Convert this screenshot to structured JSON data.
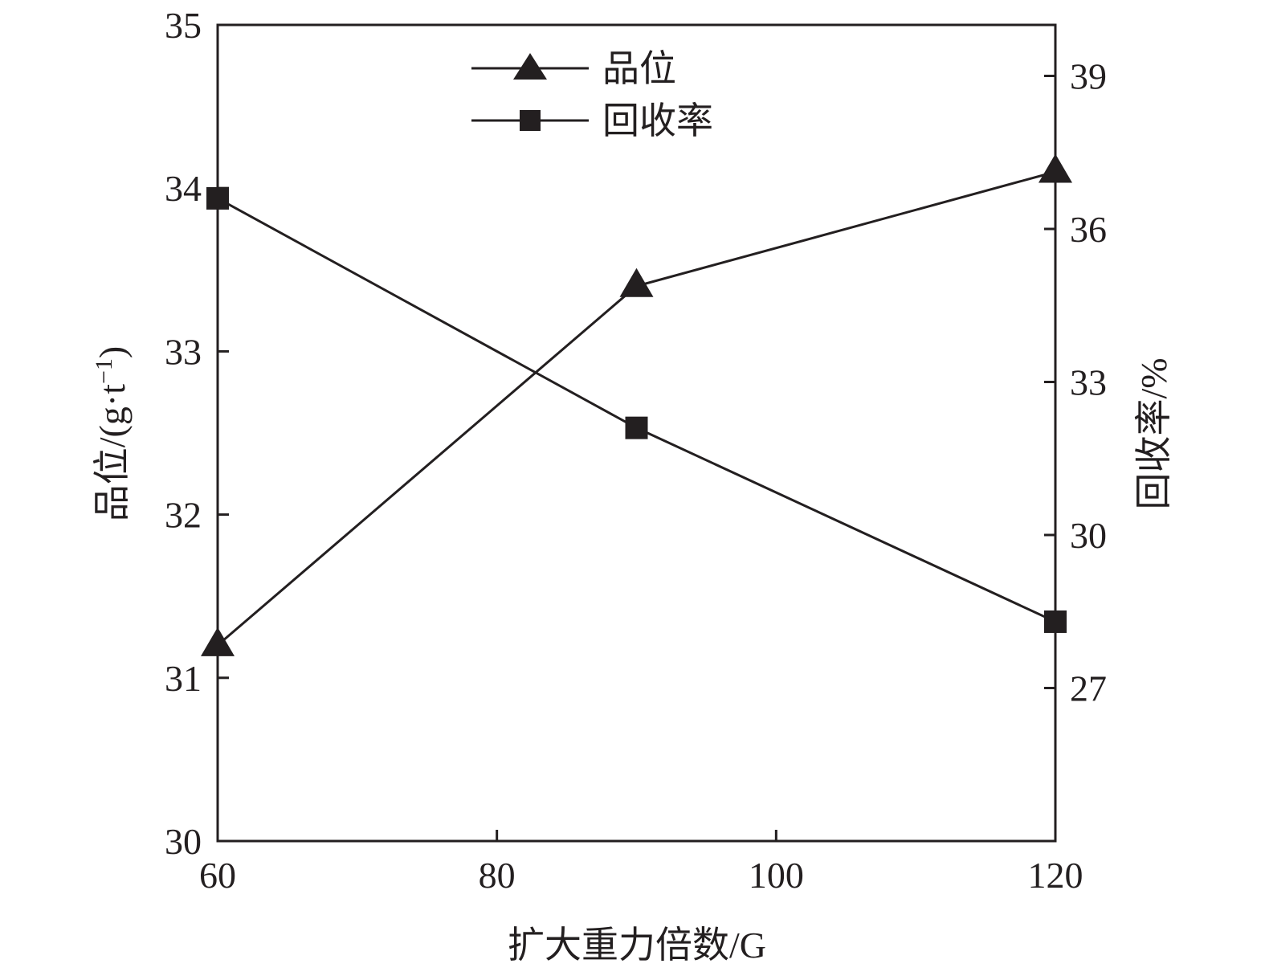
{
  "chart_data": {
    "type": "line",
    "x": [
      60,
      90,
      120
    ],
    "xlabel": "扩大重力倍数/G",
    "xlim": [
      60,
      120
    ],
    "xticks": [
      60,
      80,
      100,
      120
    ],
    "ylabel_left": "品位/(g·t",
    "ylabel_left_exp": "−1",
    "ylabel_left_close": ")",
    "ylim_left": [
      30,
      35
    ],
    "yticks_left": [
      30,
      31,
      32,
      33,
      34,
      35
    ],
    "ylabel_right": "回收率/%",
    "ylim_right": [
      24,
      40
    ],
    "yticks_right": [
      27,
      30,
      33,
      36,
      39
    ],
    "series": [
      {
        "name": "品位",
        "axis": "left",
        "marker": "triangle",
        "values": [
          31.2,
          33.4,
          34.1
        ]
      },
      {
        "name": "回收率",
        "axis": "right",
        "marker": "square",
        "values": [
          36.6,
          32.1,
          28.3
        ]
      }
    ],
    "legend_position": "top-center",
    "grid": false,
    "color": "#231f20"
  }
}
